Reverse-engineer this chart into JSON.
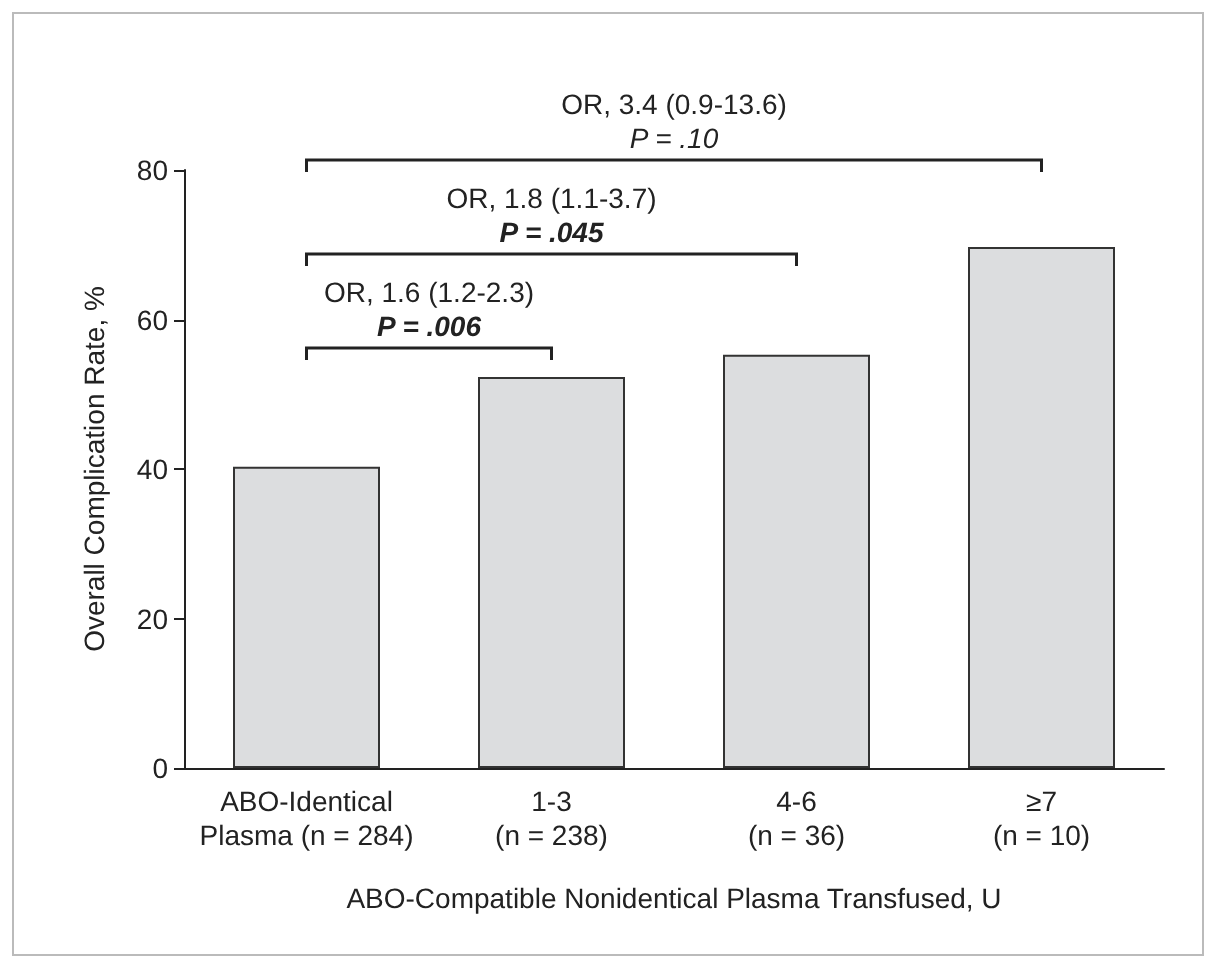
{
  "chart_data": {
    "type": "bar",
    "categories": [
      "ABO-Identical\nPlasma (n = 284)",
      "1-3\n(n = 238)",
      "4-6\n(n = 36)",
      "≥7\n(n = 10)"
    ],
    "values": [
      40.3,
      52.3,
      55.3,
      69.7
    ],
    "color": "#dcdddf",
    "xlabel": "ABO-Compatible Nonidentical Plasma Transfused, U",
    "ylabel": "Overall Complication Rate, %",
    "ylim": [
      0,
      80
    ],
    "yticks": [
      0,
      20,
      40,
      60,
      80
    ],
    "grid": false,
    "annotations": [
      "OR, 1.6 (1.2-2.3)",
      "P = .006",
      "OR, 1.8 (1.1-3.7)",
      "P = .045",
      "OR, 3.4 (0.9-13.6)",
      "P = .10"
    ]
  }
}
